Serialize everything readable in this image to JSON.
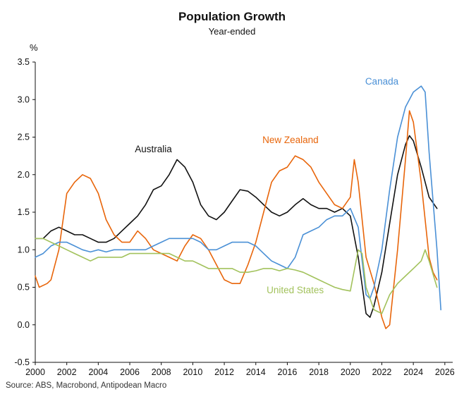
{
  "title": "Population Growth",
  "subtitle": "Year-ended",
  "y_axis_unit": "%",
  "source": "Source: ABS, Macrobond, Antipodean Macro",
  "chart_data": {
    "type": "line",
    "title": "Population Growth",
    "subtitle": "Year-ended",
    "xlabel": "",
    "ylabel": "%",
    "grid": false,
    "legend_position": "inline-annotations",
    "xlim": [
      2000,
      2026.5
    ],
    "ylim": [
      -0.5,
      3.5
    ],
    "x_ticks": [
      2000,
      2002,
      2004,
      2006,
      2008,
      2010,
      2012,
      2014,
      2016,
      2018,
      2020,
      2022,
      2024,
      2026
    ],
    "y_ticks": [
      -0.5,
      0.0,
      0.5,
      1.0,
      1.5,
      2.0,
      2.5,
      3.0,
      3.5
    ],
    "series": [
      {
        "name": "Australia",
        "color": "#111111",
        "label": {
          "x": 2007.5,
          "y": 2.3
        },
        "points": [
          [
            2000,
            1.15
          ],
          [
            2000.5,
            1.15
          ],
          [
            2001,
            1.25
          ],
          [
            2001.5,
            1.3
          ],
          [
            2002,
            1.25
          ],
          [
            2002.5,
            1.2
          ],
          [
            2003,
            1.2
          ],
          [
            2003.5,
            1.15
          ],
          [
            2004,
            1.1
          ],
          [
            2004.5,
            1.1
          ],
          [
            2005,
            1.15
          ],
          [
            2005.5,
            1.25
          ],
          [
            2006,
            1.35
          ],
          [
            2006.5,
            1.45
          ],
          [
            2007,
            1.6
          ],
          [
            2007.5,
            1.8
          ],
          [
            2008,
            1.85
          ],
          [
            2008.5,
            2.0
          ],
          [
            2009,
            2.2
          ],
          [
            2009.5,
            2.1
          ],
          [
            2010,
            1.9
          ],
          [
            2010.5,
            1.6
          ],
          [
            2011,
            1.45
          ],
          [
            2011.5,
            1.4
          ],
          [
            2012,
            1.5
          ],
          [
            2012.5,
            1.65
          ],
          [
            2013,
            1.8
          ],
          [
            2013.5,
            1.78
          ],
          [
            2014,
            1.7
          ],
          [
            2014.5,
            1.6
          ],
          [
            2015,
            1.5
          ],
          [
            2015.5,
            1.45
          ],
          [
            2016,
            1.5
          ],
          [
            2016.5,
            1.6
          ],
          [
            2017,
            1.68
          ],
          [
            2017.5,
            1.6
          ],
          [
            2018,
            1.55
          ],
          [
            2018.5,
            1.55
          ],
          [
            2019,
            1.5
          ],
          [
            2019.5,
            1.55
          ],
          [
            2020,
            1.45
          ],
          [
            2020.5,
            0.9
          ],
          [
            2021,
            0.15
          ],
          [
            2021.25,
            0.1
          ],
          [
            2021.5,
            0.25
          ],
          [
            2022,
            0.7
          ],
          [
            2022.5,
            1.35
          ],
          [
            2023,
            2.0
          ],
          [
            2023.5,
            2.4
          ],
          [
            2023.75,
            2.52
          ],
          [
            2024,
            2.45
          ],
          [
            2024.5,
            2.1
          ],
          [
            2025,
            1.7
          ],
          [
            2025.5,
            1.55
          ]
        ]
      },
      {
        "name": "New Zealand",
        "color": "#e8650a",
        "label": {
          "x": 2016.2,
          "y": 2.42
        },
        "points": [
          [
            2000,
            0.65
          ],
          [
            2000.25,
            0.5
          ],
          [
            2000.75,
            0.55
          ],
          [
            2001,
            0.6
          ],
          [
            2001.5,
            1.0
          ],
          [
            2002,
            1.75
          ],
          [
            2002.5,
            1.9
          ],
          [
            2003,
            2.0
          ],
          [
            2003.5,
            1.95
          ],
          [
            2004,
            1.75
          ],
          [
            2004.5,
            1.4
          ],
          [
            2005,
            1.2
          ],
          [
            2005.5,
            1.1
          ],
          [
            2006,
            1.1
          ],
          [
            2006.5,
            1.25
          ],
          [
            2007,
            1.15
          ],
          [
            2007.5,
            1.0
          ],
          [
            2008,
            0.95
          ],
          [
            2008.5,
            0.9
          ],
          [
            2009,
            0.85
          ],
          [
            2009.5,
            1.05
          ],
          [
            2010,
            1.2
          ],
          [
            2010.5,
            1.15
          ],
          [
            2011,
            1.0
          ],
          [
            2011.5,
            0.8
          ],
          [
            2012,
            0.6
          ],
          [
            2012.5,
            0.55
          ],
          [
            2013,
            0.55
          ],
          [
            2013.5,
            0.8
          ],
          [
            2014,
            1.1
          ],
          [
            2014.5,
            1.5
          ],
          [
            2015,
            1.9
          ],
          [
            2015.5,
            2.05
          ],
          [
            2016,
            2.1
          ],
          [
            2016.5,
            2.25
          ],
          [
            2017,
            2.2
          ],
          [
            2017.5,
            2.1
          ],
          [
            2018,
            1.9
          ],
          [
            2018.5,
            1.75
          ],
          [
            2019,
            1.6
          ],
          [
            2019.5,
            1.55
          ],
          [
            2020,
            1.7
          ],
          [
            2020.25,
            2.2
          ],
          [
            2020.5,
            1.9
          ],
          [
            2021,
            0.9
          ],
          [
            2021.5,
            0.55
          ],
          [
            2022,
            0.1
          ],
          [
            2022.25,
            -0.05
          ],
          [
            2022.5,
            0.0
          ],
          [
            2023,
            1.0
          ],
          [
            2023.5,
            2.2
          ],
          [
            2023.75,
            2.85
          ],
          [
            2024,
            2.7
          ],
          [
            2024.5,
            1.9
          ],
          [
            2025,
            0.9
          ],
          [
            2025.25,
            0.7
          ],
          [
            2025.5,
            0.6
          ]
        ]
      },
      {
        "name": "Canada",
        "color": "#4a90d6",
        "label": {
          "x": 2022.0,
          "y": 3.2
        },
        "points": [
          [
            2000,
            0.9
          ],
          [
            2000.5,
            0.95
          ],
          [
            2001,
            1.05
          ],
          [
            2001.5,
            1.1
          ],
          [
            2002,
            1.1
          ],
          [
            2002.5,
            1.05
          ],
          [
            2003,
            1.0
          ],
          [
            2003.5,
            0.97
          ],
          [
            2004,
            1.0
          ],
          [
            2004.5,
            0.97
          ],
          [
            2005,
            1.0
          ],
          [
            2005.5,
            1.0
          ],
          [
            2006,
            1.0
          ],
          [
            2006.5,
            1.0
          ],
          [
            2007,
            1.0
          ],
          [
            2007.5,
            1.05
          ],
          [
            2008,
            1.1
          ],
          [
            2008.5,
            1.15
          ],
          [
            2009,
            1.15
          ],
          [
            2009.5,
            1.15
          ],
          [
            2010,
            1.15
          ],
          [
            2010.5,
            1.1
          ],
          [
            2011,
            1.0
          ],
          [
            2011.5,
            1.0
          ],
          [
            2012,
            1.05
          ],
          [
            2012.5,
            1.1
          ],
          [
            2013,
            1.1
          ],
          [
            2013.5,
            1.1
          ],
          [
            2014,
            1.05
          ],
          [
            2014.5,
            0.95
          ],
          [
            2015,
            0.85
          ],
          [
            2015.5,
            0.8
          ],
          [
            2016,
            0.75
          ],
          [
            2016.5,
            0.9
          ],
          [
            2017,
            1.2
          ],
          [
            2017.5,
            1.25
          ],
          [
            2018,
            1.3
          ],
          [
            2018.5,
            1.4
          ],
          [
            2019,
            1.45
          ],
          [
            2019.5,
            1.45
          ],
          [
            2020,
            1.55
          ],
          [
            2020.5,
            1.3
          ],
          [
            2021,
            0.4
          ],
          [
            2021.25,
            0.35
          ],
          [
            2021.5,
            0.5
          ],
          [
            2022,
            1.0
          ],
          [
            2022.5,
            1.8
          ],
          [
            2023,
            2.5
          ],
          [
            2023.5,
            2.9
          ],
          [
            2024,
            3.1
          ],
          [
            2024.5,
            3.18
          ],
          [
            2024.75,
            3.1
          ],
          [
            2025,
            2.3
          ],
          [
            2025.5,
            1.0
          ],
          [
            2025.75,
            0.2
          ]
        ]
      },
      {
        "name": "United States",
        "color": "#a2c25c",
        "label": {
          "x": 2016.5,
          "y": 0.42
        },
        "points": [
          [
            2000,
            1.15
          ],
          [
            2000.5,
            1.15
          ],
          [
            2001,
            1.1
          ],
          [
            2001.5,
            1.05
          ],
          [
            2002,
            1.0
          ],
          [
            2002.5,
            0.95
          ],
          [
            2003,
            0.9
          ],
          [
            2003.5,
            0.85
          ],
          [
            2004,
            0.9
          ],
          [
            2004.5,
            0.9
          ],
          [
            2005,
            0.9
          ],
          [
            2005.5,
            0.9
          ],
          [
            2006,
            0.95
          ],
          [
            2006.5,
            0.95
          ],
          [
            2007,
            0.95
          ],
          [
            2007.5,
            0.95
          ],
          [
            2008,
            0.95
          ],
          [
            2008.5,
            0.95
          ],
          [
            2009,
            0.9
          ],
          [
            2009.5,
            0.85
          ],
          [
            2010,
            0.85
          ],
          [
            2010.5,
            0.8
          ],
          [
            2011,
            0.75
          ],
          [
            2011.5,
            0.75
          ],
          [
            2012,
            0.75
          ],
          [
            2012.5,
            0.75
          ],
          [
            2013,
            0.7
          ],
          [
            2013.5,
            0.7
          ],
          [
            2014,
            0.72
          ],
          [
            2014.5,
            0.75
          ],
          [
            2015,
            0.75
          ],
          [
            2015.5,
            0.72
          ],
          [
            2016,
            0.75
          ],
          [
            2016.5,
            0.73
          ],
          [
            2017,
            0.7
          ],
          [
            2017.5,
            0.65
          ],
          [
            2018,
            0.6
          ],
          [
            2018.5,
            0.55
          ],
          [
            2019,
            0.5
          ],
          [
            2019.5,
            0.47
          ],
          [
            2020,
            0.45
          ],
          [
            2020.5,
            1.0
          ],
          [
            2020.75,
            0.95
          ],
          [
            2021,
            0.5
          ],
          [
            2021.5,
            0.2
          ],
          [
            2022,
            0.15
          ],
          [
            2022.5,
            0.4
          ],
          [
            2023,
            0.55
          ],
          [
            2023.5,
            0.65
          ],
          [
            2024,
            0.75
          ],
          [
            2024.5,
            0.85
          ],
          [
            2024.75,
            1.0
          ],
          [
            2025,
            0.85
          ],
          [
            2025.5,
            0.5
          ]
        ]
      }
    ]
  }
}
